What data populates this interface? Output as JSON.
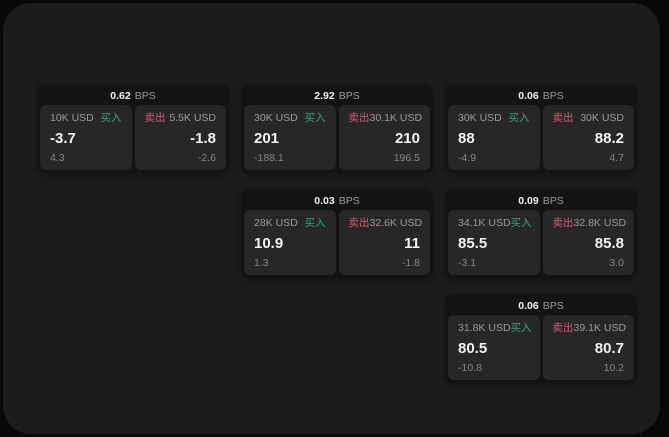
{
  "colors": {
    "background": "#080808",
    "panel": "#1c1c1c",
    "card": "#131313",
    "subcard": "#272727",
    "buy": "#3aa274",
    "sell": "#d5586f",
    "text_primary": "#f2f2f2",
    "text_secondary": "#9b9b9b",
    "text_tertiary": "#868686"
  },
  "labels": {
    "bps_unit": "BPS",
    "buy": "买入",
    "sell": "卖出"
  },
  "cards": [
    {
      "bps": "0.62",
      "buy": {
        "size": "10K USD",
        "value": "-3.7",
        "delta": "4.3"
      },
      "sell": {
        "size": "5.5K USD",
        "value": "-1.8",
        "delta": "-2.6"
      }
    },
    {
      "bps": "2.92",
      "buy": {
        "size": "30K USD",
        "value": "201",
        "delta": "-188.1"
      },
      "sell": {
        "size": "30.1K USD",
        "value": "210",
        "delta": "196.5"
      }
    },
    {
      "bps": "0.06",
      "buy": {
        "size": "30K USD",
        "value": "88",
        "delta": "-4.9"
      },
      "sell": {
        "size": "30K USD",
        "value": "88.2",
        "delta": "4.7"
      }
    },
    {
      "bps": "0.03",
      "buy": {
        "size": "28K USD",
        "value": "10.9",
        "delta": "1.3"
      },
      "sell": {
        "size": "32.6K USD",
        "value": "11",
        "delta": "-1.8"
      }
    },
    {
      "bps": "0.09",
      "buy": {
        "size": "34.1K USD",
        "value": "85.5",
        "delta": "-3.1"
      },
      "sell": {
        "size": "32.8K USD",
        "value": "85.8",
        "delta": "3.0"
      }
    },
    {
      "bps": "0.06",
      "buy": {
        "size": "31.8K USD",
        "value": "80.5",
        "delta": "-10.8"
      },
      "sell": {
        "size": "39.1K USD",
        "value": "80.7",
        "delta": "10.2"
      }
    }
  ]
}
